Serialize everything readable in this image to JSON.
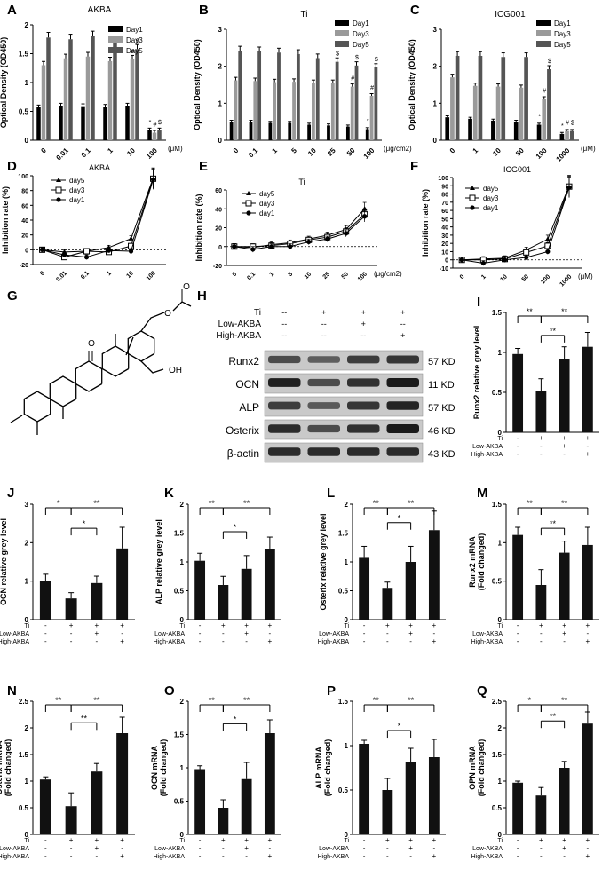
{
  "colors": {
    "bar": "#111111",
    "day1": "#000000",
    "day3": "#9a9a9a",
    "day5": "#555555",
    "blot_bg": "#c9c9c9",
    "blot_band": "#1a1a1a"
  },
  "chart_data": [
    {
      "panel": "A",
      "type": "bar",
      "title": "AKBA",
      "ylabel": "Optical Density (OD450)",
      "ylim": [
        0,
        2.0
      ],
      "yticks": [
        0,
        0.5,
        1.0,
        1.5,
        2.0
      ],
      "categories": [
        "0",
        "0.01",
        "0.1",
        "1",
        "10",
        "100"
      ],
      "unit": "(μM)",
      "series": [
        {
          "name": "Day1",
          "values": [
            0.57,
            0.6,
            0.59,
            0.58,
            0.6,
            0.17
          ]
        },
        {
          "name": "Day3",
          "values": [
            1.3,
            1.42,
            1.45,
            1.37,
            1.4,
            0.13
          ]
        },
        {
          "name": "Day5",
          "values": [
            1.78,
            1.75,
            1.8,
            1.7,
            1.58,
            0.17
          ]
        }
      ],
      "annotations": [
        {
          "cat": 4,
          "s": 1,
          "t": "#"
        },
        {
          "cat": 4,
          "s": 2,
          "t": "$"
        },
        {
          "cat": 5,
          "s": 0,
          "t": "*"
        },
        {
          "cat": 5,
          "s": 1,
          "t": "#"
        },
        {
          "cat": 5,
          "s": 2,
          "t": "$"
        }
      ]
    },
    {
      "panel": "B",
      "type": "bar",
      "title": "Ti",
      "ylabel": "Optical Density (OD450)",
      "ylim": [
        0,
        3.0
      ],
      "yticks": [
        0,
        1,
        2,
        3
      ],
      "categories": [
        "0",
        "0.1",
        "1",
        "5",
        "10",
        "25",
        "50",
        "100"
      ],
      "unit": "(μg/cm2)",
      "series": [
        {
          "name": "Day1",
          "values": [
            0.5,
            0.5,
            0.47,
            0.47,
            0.42,
            0.4,
            0.37,
            0.3
          ]
        },
        {
          "name": "Day3",
          "values": [
            1.62,
            1.6,
            1.57,
            1.58,
            1.55,
            1.55,
            1.45,
            1.2
          ]
        },
        {
          "name": "Day5",
          "values": [
            2.42,
            2.4,
            2.37,
            2.33,
            2.22,
            2.12,
            2.02,
            1.97
          ]
        }
      ],
      "annotations": [
        {
          "cat": 5,
          "s": 2,
          "t": "$"
        },
        {
          "cat": 6,
          "s": 1,
          "t": "#"
        },
        {
          "cat": 6,
          "s": 2,
          "t": "$"
        },
        {
          "cat": 7,
          "s": 0,
          "t": "*"
        },
        {
          "cat": 7,
          "s": 1,
          "t": "#"
        },
        {
          "cat": 7,
          "s": 2,
          "t": "$"
        }
      ]
    },
    {
      "panel": "C",
      "type": "bar",
      "title": "ICG001",
      "ylabel": "Optical Density (OD450)",
      "ylim": [
        0,
        3.0
      ],
      "yticks": [
        0,
        1,
        2,
        3
      ],
      "categories": [
        "0",
        "1",
        "10",
        "50",
        "100",
        "1000"
      ],
      "unit": "(μM)",
      "series": [
        {
          "name": "Day1",
          "values": [
            0.62,
            0.58,
            0.53,
            0.5,
            0.42,
            0.17
          ]
        },
        {
          "name": "Day3",
          "values": [
            1.7,
            1.47,
            1.45,
            1.42,
            1.12,
            0.25
          ]
        },
        {
          "name": "Day5",
          "values": [
            2.28,
            2.28,
            2.25,
            2.25,
            1.92,
            0.25
          ]
        }
      ],
      "annotations": [
        {
          "cat": 4,
          "s": 0,
          "t": "*"
        },
        {
          "cat": 4,
          "s": 1,
          "t": "#"
        },
        {
          "cat": 4,
          "s": 2,
          "t": "$"
        },
        {
          "cat": 5,
          "s": 0,
          "t": "*"
        },
        {
          "cat": 5,
          "s": 1,
          "t": "#"
        },
        {
          "cat": 5,
          "s": 2,
          "t": "$"
        }
      ]
    },
    {
      "panel": "D",
      "type": "line",
      "title": "AKBA",
      "ylabel": "Inhibition rate (%)",
      "ylim": [
        -20,
        100
      ],
      "yticks": [
        -20,
        0,
        20,
        40,
        60,
        80,
        100
      ],
      "categories": [
        "0",
        "0.01",
        "0.1",
        "1",
        "10",
        "100"
      ],
      "unit": "",
      "series": [
        {
          "name": "day5",
          "values": [
            0,
            -3,
            -2,
            3,
            15,
            97
          ]
        },
        {
          "name": "day3",
          "values": [
            0,
            -10,
            -2,
            -3,
            5,
            96
          ]
        },
        {
          "name": "day1",
          "values": [
            0,
            -7,
            -10,
            -1,
            -2,
            95
          ]
        }
      ]
    },
    {
      "panel": "E",
      "type": "line",
      "title": "Ti",
      "ylabel": "Inhibition rate (%)",
      "ylim": [
        -20,
        60
      ],
      "yticks": [
        -20,
        0,
        20,
        40,
        60
      ],
      "categories": [
        "0",
        "0.1",
        "1",
        "5",
        "10",
        "25",
        "50",
        "100"
      ],
      "unit": "(μg/cm2)",
      "series": [
        {
          "name": "day5",
          "values": [
            0,
            -1,
            2,
            4,
            8,
            12,
            18,
            40
          ]
        },
        {
          "name": "day3",
          "values": [
            0,
            0,
            1,
            3,
            7,
            10,
            16,
            34
          ]
        },
        {
          "name": "day1",
          "values": [
            0,
            -3,
            0,
            0,
            5,
            8,
            14,
            32
          ]
        }
      ]
    },
    {
      "panel": "F",
      "type": "line",
      "title": "ICG001",
      "ylabel": "Inhibition rate (%)",
      "ylim": [
        -10,
        100
      ],
      "yticks": [
        -10,
        0,
        10,
        20,
        30,
        40,
        50,
        60,
        70,
        80,
        90,
        100
      ],
      "categories": [
        "0",
        "1",
        "10",
        "50",
        "100",
        "1000"
      ],
      "unit": "(μM)",
      "series": [
        {
          "name": "day5",
          "values": [
            0,
            1,
            2,
            12,
            25,
            90
          ]
        },
        {
          "name": "day3",
          "values": [
            0,
            0,
            1,
            9,
            17,
            89
          ]
        },
        {
          "name": "day1",
          "values": [
            0,
            -4,
            0,
            3,
            10,
            88
          ]
        }
      ]
    },
    {
      "panel": "I",
      "type": "bar",
      "ylabel": "Runx2 relative grey level",
      "ylim": [
        0,
        1.5
      ],
      "yticks": [
        0,
        0.5,
        1.0,
        1.5
      ],
      "values": [
        0.98,
        0.52,
        0.92,
        1.07
      ],
      "errors": [
        0.07,
        0.15,
        0.15,
        0.18
      ],
      "brackets": [
        {
          "a": 0,
          "b": 1,
          "t": "**",
          "lvl": 0
        },
        {
          "a": 1,
          "b": 3,
          "t": "**",
          "lvl": 0
        },
        {
          "a": 1,
          "b": 2,
          "t": "**",
          "lvl": 1
        }
      ]
    },
    {
      "panel": "J",
      "type": "bar",
      "ylabel": "OCN relative grey level",
      "ylim": [
        0,
        3
      ],
      "yticks": [
        0,
        1,
        2,
        3
      ],
      "values": [
        1.0,
        0.55,
        0.95,
        1.85
      ],
      "errors": [
        0.18,
        0.15,
        0.18,
        0.55
      ],
      "brackets": [
        {
          "a": 0,
          "b": 1,
          "t": "*",
          "lvl": 0
        },
        {
          "a": 1,
          "b": 3,
          "t": "**",
          "lvl": 0
        },
        {
          "a": 1,
          "b": 2,
          "t": "*",
          "lvl": 1
        }
      ]
    },
    {
      "panel": "K",
      "type": "bar",
      "ylabel": "ALP relative grey level",
      "ylim": [
        0,
        2.0
      ],
      "yticks": [
        0,
        0.5,
        1.0,
        1.5,
        2.0
      ],
      "values": [
        1.02,
        0.6,
        0.88,
        1.23
      ],
      "errors": [
        0.13,
        0.15,
        0.23,
        0.2
      ],
      "brackets": [
        {
          "a": 0,
          "b": 1,
          "t": "**",
          "lvl": 0
        },
        {
          "a": 1,
          "b": 3,
          "t": "**",
          "lvl": 0
        },
        {
          "a": 1,
          "b": 2,
          "t": "*",
          "lvl": 1
        }
      ]
    },
    {
      "panel": "L",
      "type": "bar",
      "ylabel": "Osterix relative grey level",
      "ylim": [
        0,
        2.0
      ],
      "yticks": [
        0,
        0.5,
        1.0,
        1.5,
        2.0
      ],
      "values": [
        1.07,
        0.55,
        1.0,
        1.55
      ],
      "errors": [
        0.2,
        0.1,
        0.27,
        0.33
      ],
      "brackets": [
        {
          "a": 0,
          "b": 1,
          "t": "**",
          "lvl": 0
        },
        {
          "a": 1,
          "b": 3,
          "t": "**",
          "lvl": 0
        },
        {
          "a": 1,
          "b": 2,
          "t": "*",
          "lvl": 1
        }
      ]
    },
    {
      "panel": "M",
      "type": "bar",
      "ylabel": "Runx2 mRNA (Fold changed)",
      "ylim": [
        0,
        1.5
      ],
      "yticks": [
        0,
        0.5,
        1.0,
        1.5
      ],
      "values": [
        1.1,
        0.45,
        0.87,
        0.97
      ],
      "errors": [
        0.1,
        0.2,
        0.15,
        0.23
      ],
      "brackets": [
        {
          "a": 0,
          "b": 1,
          "t": "**",
          "lvl": 0
        },
        {
          "a": 1,
          "b": 3,
          "t": "**",
          "lvl": 0
        },
        {
          "a": 1,
          "b": 2,
          "t": "**",
          "lvl": 1
        }
      ]
    },
    {
      "panel": "N",
      "type": "bar",
      "ylabel": "Osterix mRNA (Fold changed)",
      "ylim": [
        0,
        2.5
      ],
      "yticks": [
        0,
        0.5,
        1.0,
        1.5,
        2.0,
        2.5
      ],
      "values": [
        1.03,
        0.53,
        1.18,
        1.9
      ],
      "errors": [
        0.05,
        0.25,
        0.15,
        0.3
      ],
      "brackets": [
        {
          "a": 0,
          "b": 1,
          "t": "**",
          "lvl": 0
        },
        {
          "a": 1,
          "b": 3,
          "t": "**",
          "lvl": 0
        },
        {
          "a": 1,
          "b": 2,
          "t": "**",
          "lvl": 1
        }
      ]
    },
    {
      "panel": "O",
      "type": "bar",
      "ylabel": "OCN mRNA (Fold changed)",
      "ylim": [
        0,
        2.0
      ],
      "yticks": [
        0,
        0.5,
        1.0,
        1.5,
        2.0
      ],
      "values": [
        0.98,
        0.4,
        0.83,
        1.52
      ],
      "errors": [
        0.05,
        0.12,
        0.25,
        0.2
      ],
      "brackets": [
        {
          "a": 0,
          "b": 1,
          "t": "**",
          "lvl": 0
        },
        {
          "a": 1,
          "b": 3,
          "t": "**",
          "lvl": 0
        },
        {
          "a": 1,
          "b": 2,
          "t": "*",
          "lvl": 1
        }
      ]
    },
    {
      "panel": "P",
      "type": "bar",
      "ylabel": "ALP mRNA (Fold changed)",
      "ylim": [
        0,
        1.5
      ],
      "yticks": [
        0,
        0.5,
        1.0,
        1.5
      ],
      "values": [
        1.02,
        0.5,
        0.82,
        0.87
      ],
      "errors": [
        0.04,
        0.13,
        0.15,
        0.2
      ],
      "brackets": [
        {
          "a": 0,
          "b": 1,
          "t": "**",
          "lvl": 0
        },
        {
          "a": 1,
          "b": 3,
          "t": "**",
          "lvl": 0
        },
        {
          "a": 1,
          "b": 2,
          "t": "*",
          "lvl": 1
        }
      ]
    },
    {
      "panel": "Q",
      "type": "bar",
      "ylabel": "OPN mRNA (Fold changed)",
      "ylim": [
        0,
        2.5
      ],
      "yticks": [
        0,
        0.5,
        1.0,
        1.5,
        2.0,
        2.5
      ],
      "values": [
        0.97,
        0.73,
        1.25,
        2.08
      ],
      "errors": [
        0.03,
        0.15,
        0.12,
        0.22
      ],
      "brackets": [
        {
          "a": 0,
          "b": 1,
          "t": "*",
          "lvl": 0
        },
        {
          "a": 1,
          "b": 3,
          "t": "**",
          "lvl": 0
        },
        {
          "a": 1,
          "b": 2,
          "t": "**",
          "lvl": 1
        }
      ]
    }
  ],
  "treatment_rows": [
    {
      "label": "Ti",
      "marks": [
        "-",
        "+",
        "+",
        "+"
      ]
    },
    {
      "label": "Low-AKBA",
      "marks": [
        "-",
        "-",
        "+",
        "-"
      ]
    },
    {
      "label": "High-AKBA",
      "marks": [
        "-",
        "-",
        "-",
        "+"
      ]
    }
  ],
  "western_blot": {
    "panel": "H",
    "header_rows": [
      {
        "label": "Ti",
        "marks": [
          "--",
          "+",
          "+",
          "+"
        ]
      },
      {
        "label": "Low-AKBA",
        "marks": [
          "--",
          "--",
          "+",
          "--"
        ]
      },
      {
        "label": "High-AKBA",
        "marks": [
          "--",
          "--",
          "--",
          "+"
        ]
      }
    ],
    "bands": [
      {
        "protein": "Runx2",
        "size": "57 KD",
        "intensity": [
          0.55,
          0.4,
          0.7,
          0.75
        ]
      },
      {
        "protein": "OCN",
        "size": "11 KD",
        "intensity": [
          0.95,
          0.55,
          0.8,
          1.0
        ]
      },
      {
        "protein": "ALP",
        "size": "57 KD",
        "intensity": [
          0.7,
          0.45,
          0.75,
          0.9
        ]
      },
      {
        "protein": "Osterix",
        "size": "46 KD",
        "intensity": [
          0.85,
          0.55,
          0.8,
          1.0
        ]
      },
      {
        "protein": "β-actin",
        "size": "43 KD",
        "intensity": [
          0.85,
          0.85,
          0.85,
          0.85
        ]
      }
    ]
  },
  "structure_panel": {
    "panel": "G",
    "atoms": [
      "O",
      "O",
      "O",
      "OH"
    ]
  }
}
